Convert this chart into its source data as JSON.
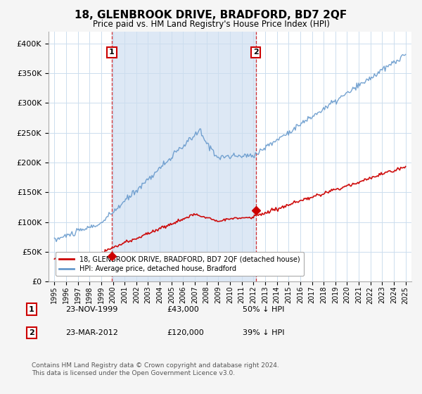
{
  "title": "18, GLENBROOK DRIVE, BRADFORD, BD7 2QF",
  "subtitle": "Price paid vs. HM Land Registry's House Price Index (HPI)",
  "red_label": "18, GLENBROOK DRIVE, BRADFORD, BD7 2QF (detached house)",
  "blue_label": "HPI: Average price, detached house, Bradford",
  "footer": "Contains HM Land Registry data © Crown copyright and database right 2024.\nThis data is licensed under the Open Government Licence v3.0.",
  "sale1_year": 1999.9,
  "sale1_price": 43000,
  "sale1_label": "1",
  "sale1_date": "23-NOV-1999",
  "sale1_text": "£43,000",
  "sale1_pct": "50% ↓ HPI",
  "sale2_year": 2012.2,
  "sale2_price": 120000,
  "sale2_label": "2",
  "sale2_date": "23-MAR-2012",
  "sale2_text": "£120,000",
  "sale2_pct": "39% ↓ HPI",
  "ylim": [
    0,
    420000
  ],
  "xlim": [
    1994.5,
    2025.5
  ],
  "red_color": "#cc0000",
  "blue_color": "#6699cc",
  "shade_color": "#dde8f5",
  "background_color": "#f5f5f5",
  "plot_bg": "#ffffff"
}
